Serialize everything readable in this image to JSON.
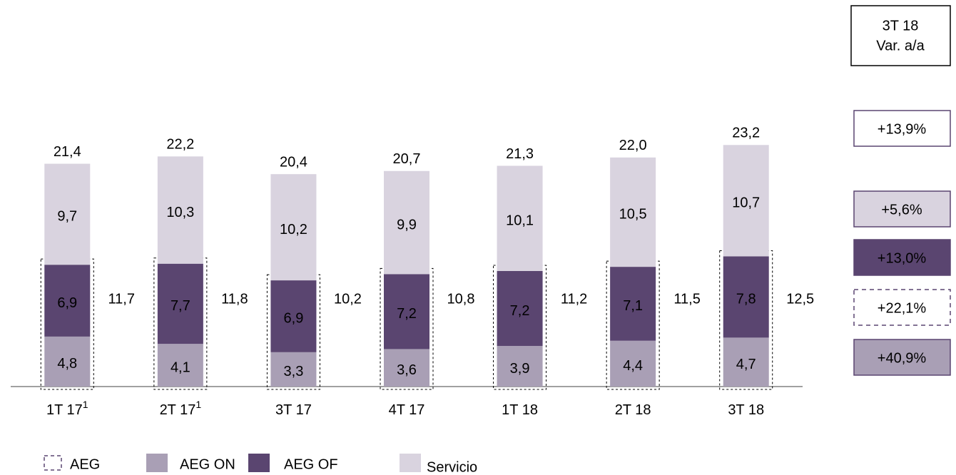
{
  "chart_data": {
    "type": "stacked_bar",
    "categories": [
      "1T 17",
      "2T 17",
      "3T 17",
      "4T 17",
      "1T 18",
      "2T 18",
      "3T 18"
    ],
    "category_notes": [
      "1",
      "1",
      null,
      null,
      null,
      null,
      null
    ],
    "series": [
      {
        "name": "AEG ON",
        "color": "#a99fb5",
        "values": [
          4.8,
          4.1,
          3.3,
          3.6,
          3.9,
          4.4,
          4.7
        ],
        "value_labels": [
          "4,8",
          "4,1",
          "3,3",
          "3,6",
          "3,9",
          "4,4",
          "4,7"
        ]
      },
      {
        "name": "AEG OF",
        "color": "#5a4570",
        "values": [
          6.9,
          7.7,
          6.9,
          7.2,
          7.2,
          7.1,
          7.8
        ],
        "value_labels": [
          "6,9",
          "7,7",
          "6,9",
          "7,2",
          "7,2",
          "7,1",
          "7,8"
        ]
      },
      {
        "name": "Servicio",
        "color": "#d9d3df",
        "values": [
          9.7,
          10.3,
          10.2,
          9.9,
          10.1,
          10.5,
          10.7
        ],
        "value_labels": [
          "9,7",
          "10,3",
          "10,2",
          "9,9",
          "10,1",
          "10,5",
          "10,7"
        ]
      }
    ],
    "aeg": {
      "name": "AEG",
      "values": [
        11.7,
        11.8,
        10.2,
        10.8,
        11.2,
        11.5,
        12.5
      ],
      "value_labels": [
        "11,7",
        "11,8",
        "10,2",
        "10,8",
        "11,2",
        "11,5",
        "12,5"
      ]
    },
    "totals": {
      "values": [
        21.4,
        22.2,
        20.4,
        20.7,
        21.3,
        22.0,
        23.2
      ],
      "value_labels": [
        "21,4",
        "22,2",
        "20,4",
        "20,7",
        "21,3",
        "22,0",
        "23,2"
      ]
    },
    "ylim": [
      0,
      25
    ],
    "variation": {
      "title": "3T 18",
      "subtitle": "Var. a/a",
      "values": [
        13.9,
        5.6,
        13.0,
        22.1,
        40.9
      ],
      "value_labels": [
        "+13,9%",
        "+5,6%",
        "+13,0%",
        "+22,1%",
        "+40,9%"
      ]
    }
  }
}
